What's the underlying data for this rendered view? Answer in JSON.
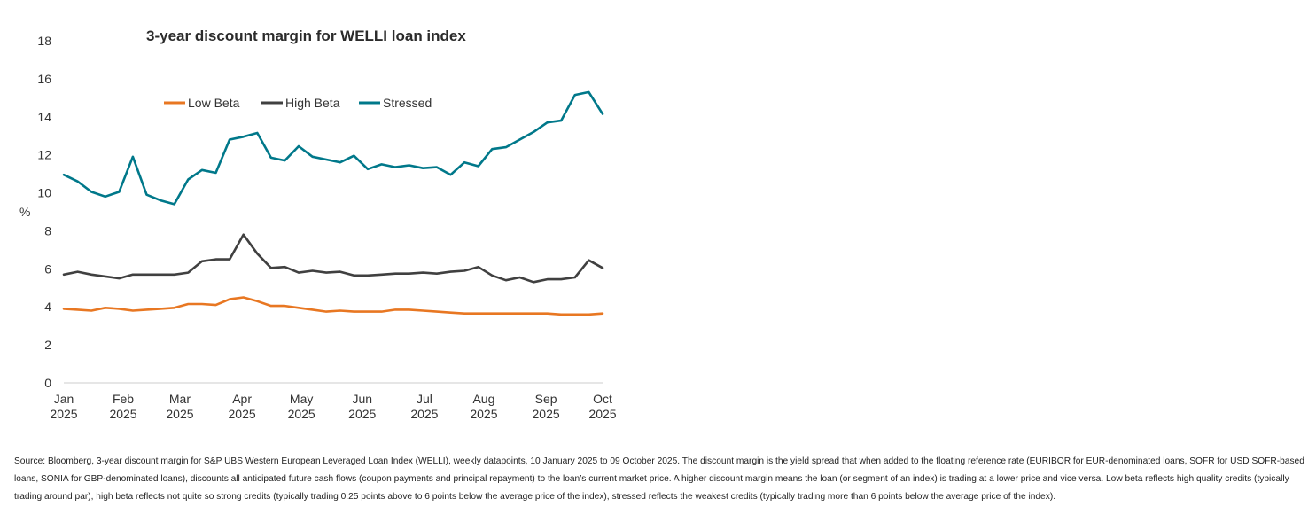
{
  "chart_data": {
    "type": "line",
    "title": "3-year discount margin for WELLI loan index",
    "ylabel": "%",
    "xlabel": "",
    "ylim": [
      0,
      18
    ],
    "yticks": [
      0,
      2,
      4,
      6,
      8,
      10,
      12,
      14,
      16,
      18
    ],
    "grid": false,
    "legend_position": "top-left",
    "x_tick_labels": [
      {
        "month": "Jan",
        "year": "2025",
        "week": 0
      },
      {
        "month": "Feb",
        "year": "2025",
        "week": 4.3
      },
      {
        "month": "Mar",
        "year": "2025",
        "week": 8.4
      },
      {
        "month": "Apr",
        "year": "2025",
        "week": 12.9
      },
      {
        "month": "May",
        "year": "2025",
        "week": 17.2
      },
      {
        "month": "Jun",
        "year": "2025",
        "week": 21.6
      },
      {
        "month": "Jul",
        "year": "2025",
        "week": 26.1
      },
      {
        "month": "Aug",
        "year": "2025",
        "week": 30.4
      },
      {
        "month": "Sep",
        "year": "2025",
        "week": 34.9
      },
      {
        "month": "Oct",
        "year": "2025",
        "week": 39
      }
    ],
    "series": [
      {
        "name": "Low Beta",
        "color": "#e87722",
        "values": [
          3.9,
          3.85,
          3.8,
          3.95,
          3.9,
          3.8,
          3.85,
          3.9,
          3.95,
          4.15,
          4.15,
          4.1,
          4.4,
          4.5,
          4.3,
          4.05,
          4.05,
          3.95,
          3.85,
          3.75,
          3.8,
          3.75,
          3.75,
          3.75,
          3.85,
          3.85,
          3.8,
          3.75,
          3.7,
          3.65,
          3.65,
          3.65,
          3.65,
          3.65,
          3.65,
          3.65,
          3.6,
          3.6,
          3.6,
          3.65
        ]
      },
      {
        "name": "High Beta",
        "color": "#404040",
        "values": [
          5.7,
          5.85,
          5.7,
          5.6,
          5.5,
          5.7,
          5.7,
          5.7,
          5.7,
          5.8,
          6.4,
          6.5,
          6.5,
          7.8,
          6.8,
          6.05,
          6.1,
          5.8,
          5.9,
          5.8,
          5.85,
          5.65,
          5.65,
          5.7,
          5.75,
          5.75,
          5.8,
          5.75,
          5.85,
          5.9,
          6.1,
          5.65,
          5.4,
          5.55,
          5.3,
          5.45,
          5.45,
          5.55,
          6.45,
          6.05
        ]
      },
      {
        "name": "Stressed",
        "color": "#00788a",
        "values": [
          10.95,
          10.6,
          10.05,
          9.8,
          10.05,
          11.9,
          9.9,
          9.6,
          9.4,
          10.7,
          11.2,
          11.05,
          12.8,
          12.95,
          13.15,
          11.85,
          11.7,
          12.45,
          11.9,
          11.75,
          11.6,
          11.95,
          11.25,
          11.5,
          11.35,
          11.45,
          11.3,
          11.35,
          10.95,
          11.6,
          11.4,
          12.3,
          12.4,
          12.8,
          13.2,
          13.7,
          13.8,
          15.15,
          15.3,
          14.15
        ]
      }
    ]
  },
  "source_note": "Source: Bloomberg, 3-year discount margin for S&P UBS Western European Leveraged Loan Index (WELLI), weekly datapoints, 10 January 2025 to 09 October 2025. The discount margin is the yield spread that when added to the floating reference rate (EURIBOR for EUR-denominated loans, SOFR for USD SOFR-based loans, SONIA for GBP-denominated loans), discounts all anticipated future cash flows (coupon payments and principal repayment) to the loan’s current market price. A higher discount margin means the loan (or segment of an index) is trading at a lower price and vice versa. Low beta reflects high quality credits (typically trading around par), high beta reflects not quite so strong credits (typically trading 0.25 points above to 6 points below the average price of the index), stressed reflects the weakest credits (typically trading more than 6 points below the average price of the index)."
}
